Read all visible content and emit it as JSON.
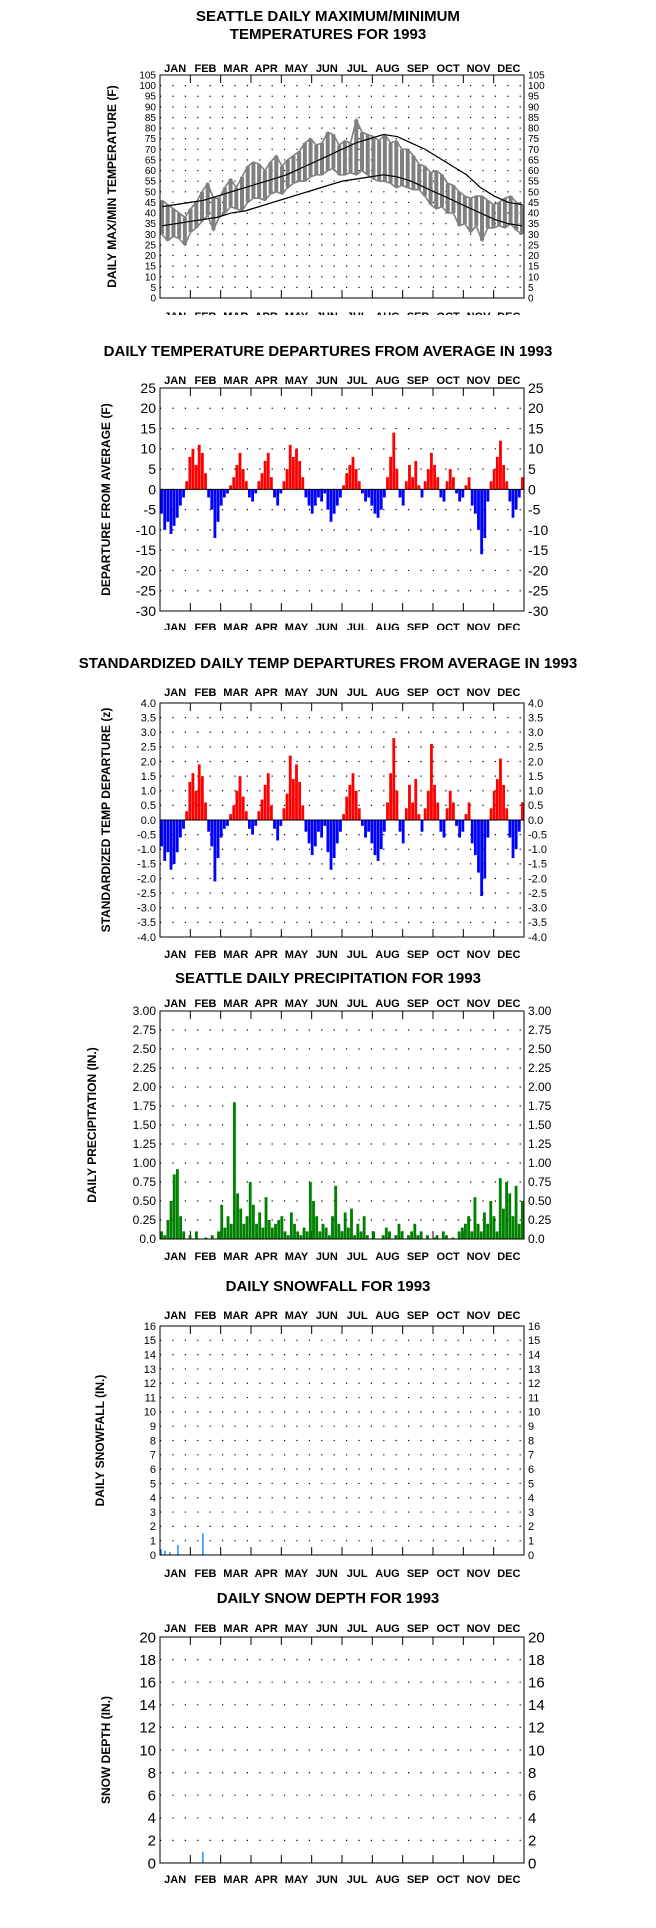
{
  "months": [
    "JAN",
    "FEB",
    "MAR",
    "APR",
    "MAY",
    "JUN",
    "JUL",
    "AUG",
    "SEP",
    "OCT",
    "NOV",
    "DEC"
  ],
  "colors": {
    "max_min": "#808080",
    "normal": "#000000",
    "positive": "#ff0000",
    "negative": "#0000ff",
    "precip": "#008000",
    "snow": "#1e90ff"
  },
  "chart_data": [
    {
      "type": "line",
      "title": "SEATTLE DAILY MAXIMUM/MINIMUM",
      "subtitle": "TEMPERATURES FOR 1993",
      "ylabel": "DAILY MAX/MIN TEMPERATURE (F)",
      "ylim": [
        0,
        105
      ],
      "yticks": [
        0,
        5,
        10,
        15,
        20,
        25,
        30,
        35,
        40,
        45,
        50,
        55,
        60,
        65,
        70,
        75,
        80,
        85,
        90,
        95,
        100,
        105
      ],
      "ytick_labels": [
        "0",
        "5",
        "10",
        "15",
        "20",
        "25",
        "30",
        "35",
        "40",
        "45",
        "50",
        "55",
        "60",
        "65",
        "70",
        "75",
        "80",
        "85",
        "90",
        "95",
        "100",
        "105"
      ],
      "grid": true,
      "series": [
        {
          "values": [
            46,
            44,
            42,
            40,
            38,
            42,
            45,
            50,
            54,
            47,
            47,
            52,
            56,
            52,
            57,
            62,
            64,
            63,
            60,
            64,
            67,
            62,
            65,
            67,
            69,
            73,
            75,
            72,
            73,
            78,
            77,
            72,
            74,
            73,
            84,
            78,
            77,
            76,
            74,
            77,
            73,
            74,
            70,
            70,
            67,
            63,
            62,
            59,
            60,
            58,
            54,
            53,
            50,
            48,
            47,
            48,
            48,
            46,
            44,
            45,
            47,
            48,
            45,
            44
          ]
        },
        {
          "values": [
            30,
            27,
            29,
            28,
            25,
            31,
            33,
            36,
            39,
            32,
            38,
            40,
            43,
            42,
            41,
            45,
            47,
            47,
            46,
            49,
            50,
            49,
            52,
            54,
            55,
            55,
            57,
            58,
            58,
            60,
            61,
            58,
            58,
            59,
            58,
            60,
            58,
            56,
            55,
            55,
            54,
            52,
            53,
            52,
            51,
            51,
            48,
            44,
            42,
            43,
            40,
            40,
            34,
            35,
            31,
            34,
            27,
            33,
            33,
            34,
            33,
            35,
            32,
            30
          ]
        },
        {
          "values": [
            43,
            44,
            45,
            46,
            48,
            50,
            52,
            54,
            56,
            58,
            61,
            64,
            67,
            70,
            73,
            75,
            77,
            76,
            73,
            70,
            66,
            62,
            58,
            52,
            48,
            45,
            44
          ]
        },
        {
          "values": [
            34,
            35,
            36,
            37,
            38,
            40,
            41,
            43,
            45,
            47,
            49,
            51,
            53,
            55,
            56,
            57,
            58,
            57,
            55,
            52,
            49,
            46,
            43,
            40,
            37,
            35,
            34
          ]
        }
      ]
    },
    {
      "type": "bar",
      "title": "DAILY TEMPERATURE DEPARTURES FROM AVERAGE IN 1993",
      "ylabel": "DEPARTURE FROM AVERAGE (F)",
      "ylim": [
        -30,
        25
      ],
      "yticks": [
        -30,
        -25,
        -20,
        -15,
        -10,
        -5,
        0,
        5,
        10,
        15,
        20,
        25
      ],
      "ytick_labels": [
        "-30",
        "-25",
        "-20",
        "-15",
        "-10",
        "-5",
        "0",
        "5",
        "10",
        "15",
        "20",
        "25"
      ],
      "grid": true,
      "values": [
        -6,
        -10,
        -8,
        -11,
        -9,
        -7,
        -4,
        -2,
        2,
        8,
        10,
        6,
        11,
        9,
        4,
        -2,
        -5,
        -12,
        -8,
        -4,
        -2,
        -1,
        1,
        3,
        6,
        9,
        5,
        2,
        -2,
        -3,
        -1,
        2,
        4,
        7,
        9,
        3,
        -2,
        -4,
        -1,
        2,
        5,
        11,
        8,
        10,
        7,
        3,
        -2,
        -4,
        -6,
        -4,
        -2,
        -3,
        -1,
        -5,
        -8,
        -6,
        -4,
        -2,
        1,
        4,
        6,
        8,
        5,
        2,
        -1,
        -3,
        -2,
        -4,
        -6,
        -7,
        -5,
        -2,
        3,
        8,
        14,
        5,
        -2,
        -4,
        2,
        6,
        3,
        7,
        1,
        -2,
        2,
        5,
        9,
        6,
        3,
        -2,
        -3,
        2,
        5,
        3,
        -1,
        -3,
        -2,
        1,
        3,
        -4,
        -6,
        -10,
        -16,
        -12,
        -3,
        2,
        5,
        8,
        12,
        6,
        2,
        -3,
        -7,
        -5,
        -2,
        3
      ]
    },
    {
      "type": "bar",
      "title": "STANDARDIZED DAILY TEMP DEPARTURES FROM AVERAGE IN 1993",
      "ylabel": "STANDARDIZED TEMP DEPARTURE (z)",
      "ylim": [
        -4.0,
        4.0
      ],
      "yticks": [
        -4,
        -3.5,
        -3,
        -2.5,
        -2,
        -1.5,
        -1,
        -0.5,
        0,
        0.5,
        1,
        1.5,
        2,
        2.5,
        3,
        3.5,
        4
      ],
      "ytick_labels_left": [
        "-4.0",
        "-3.5",
        "-3.0",
        "-2.5",
        "-2.0",
        "-1.5",
        "-1.0",
        "-0.5",
        "0.0",
        "0.5",
        "1.0",
        "1.5",
        "2.0",
        "2.5",
        "3.0",
        "3.5",
        "4.0"
      ],
      "ytick_labels_right": [
        "-4.0",
        "-3.5",
        "-3.0",
        "-2.5",
        "-2.0",
        "-1.5",
        "-1.0",
        "-0.5",
        "0.0",
        "0.5",
        "1.0",
        "1.5",
        "2.0",
        "2.5",
        "3.0",
        "3.5",
        "4.0"
      ],
      "grid": true,
      "values": [
        -0.9,
        -1.4,
        -1.1,
        -1.7,
        -1.5,
        -1.1,
        -0.6,
        -0.3,
        0.3,
        1.3,
        1.6,
        1.0,
        1.9,
        1.5,
        0.6,
        -0.4,
        -0.9,
        -2.1,
        -1.3,
        -0.6,
        -0.3,
        -0.2,
        0.2,
        0.5,
        1.0,
        1.5,
        0.8,
        0.3,
        -0.3,
        -0.5,
        -0.2,
        0.3,
        0.7,
        1.2,
        1.6,
        0.5,
        -0.3,
        -0.7,
        -0.2,
        0.4,
        0.9,
        2.2,
        1.4,
        1.9,
        1.3,
        0.5,
        -0.4,
        -0.8,
        -1.2,
        -0.9,
        -0.4,
        -0.6,
        -0.2,
        -1.1,
        -1.7,
        -1.3,
        -0.8,
        -0.4,
        0.2,
        0.8,
        1.2,
        1.6,
        1.0,
        0.4,
        -0.2,
        -0.6,
        -0.4,
        -0.8,
        -1.2,
        -1.4,
        -1.0,
        -0.4,
        0.6,
        1.6,
        2.8,
        1.0,
        -0.4,
        -0.8,
        0.4,
        1.2,
        0.6,
        1.4,
        0.2,
        -0.4,
        0.4,
        1.0,
        2.6,
        1.2,
        0.6,
        -0.4,
        -0.6,
        0.4,
        1.0,
        0.6,
        -0.2,
        -0.6,
        -0.4,
        0.2,
        0.6,
        -0.8,
        -1.2,
        -1.8,
        -2.6,
        -2.0,
        -0.6,
        0.4,
        1.0,
        1.4,
        2.1,
        1.2,
        0.4,
        -0.6,
        -1.3,
        -1.0,
        -0.4,
        0.6
      ]
    },
    {
      "type": "bar",
      "title": "SEATTLE DAILY PRECIPITATION FOR 1993",
      "ylabel": "DAILY PRECIPITATION (IN.)",
      "ylim": [
        0,
        3.0
      ],
      "yticks": [
        0,
        0.25,
        0.5,
        0.75,
        1,
        1.25,
        1.5,
        1.75,
        2,
        2.25,
        2.5,
        2.75,
        3
      ],
      "ytick_labels": [
        "0.0",
        "0.25",
        "0.50",
        "0.75",
        "1.00",
        "1.25",
        "1.50",
        "1.75",
        "2.00",
        "2.25",
        "2.50",
        "2.75",
        "3.00"
      ],
      "grid": true,
      "values": [
        0.1,
        0.05,
        0.25,
        0.5,
        0.85,
        0.92,
        0.3,
        0.1,
        0,
        0.05,
        0,
        0.1,
        0,
        0,
        0.02,
        0,
        0.05,
        0,
        0.1,
        0.45,
        0.15,
        0.3,
        0.2,
        1.8,
        0.6,
        0.4,
        0.2,
        0.3,
        0.75,
        0.45,
        0.2,
        0.35,
        0.15,
        0.55,
        0.25,
        0.15,
        0.2,
        0.25,
        0.3,
        0.1,
        0.05,
        0.35,
        0.2,
        0.1,
        0.05,
        0.15,
        0.1,
        0.75,
        0.5,
        0.3,
        0.1,
        0.2,
        0.15,
        0.05,
        0.3,
        0.7,
        0.2,
        0.1,
        0.35,
        0.15,
        0.4,
        0.05,
        0.2,
        0.1,
        0.3,
        0.05,
        0,
        0.1,
        0,
        0,
        0.05,
        0.15,
        0.1,
        0,
        0.05,
        0.2,
        0.1,
        0,
        0.05,
        0.1,
        0.2,
        0.05,
        0.1,
        0,
        0.05,
        0,
        0.02,
        0.05,
        0,
        0.1,
        0.05,
        0,
        0.02,
        0,
        0.1,
        0.15,
        0.2,
        0.3,
        0.1,
        0.55,
        0.2,
        0.1,
        0.35,
        0.2,
        0.5,
        0.3,
        0.1,
        0.8,
        0.4,
        0.75,
        0.6,
        0.3,
        0.7,
        0.2,
        0.5
      ]
    },
    {
      "type": "bar",
      "title": "DAILY SNOWFALL FOR 1993",
      "ylabel": "DAILY SNOWFALL (IN.)",
      "ylim": [
        0,
        16
      ],
      "yticks": [
        0,
        1,
        2,
        3,
        4,
        5,
        6,
        7,
        8,
        9,
        10,
        11,
        12,
        13,
        14,
        15,
        16
      ],
      "ytick_labels": [
        "0",
        "1",
        "2",
        "3",
        "4",
        "5",
        "6",
        "7",
        "8",
        "9",
        "10",
        "11",
        "12",
        "13",
        "14",
        "15",
        "16"
      ],
      "grid": true,
      "points": [
        [
          1,
          0.4
        ],
        [
          5,
          0.3
        ],
        [
          10,
          0.2
        ],
        [
          18,
          0.7
        ],
        [
          43,
          1.5
        ]
      ]
    },
    {
      "type": "bar",
      "title": "DAILY SNOW DEPTH FOR 1993",
      "ylabel": "SNOW DEPTH (IN.)",
      "ylim": [
        0,
        20
      ],
      "yticks": [
        0,
        2,
        4,
        6,
        8,
        10,
        12,
        14,
        16,
        18,
        20
      ],
      "ytick_labels": [
        "0",
        "2",
        "4",
        "6",
        "8",
        "10",
        "12",
        "14",
        "16",
        "18",
        "20"
      ],
      "grid": true,
      "points": [
        [
          43,
          1.0
        ]
      ]
    }
  ]
}
